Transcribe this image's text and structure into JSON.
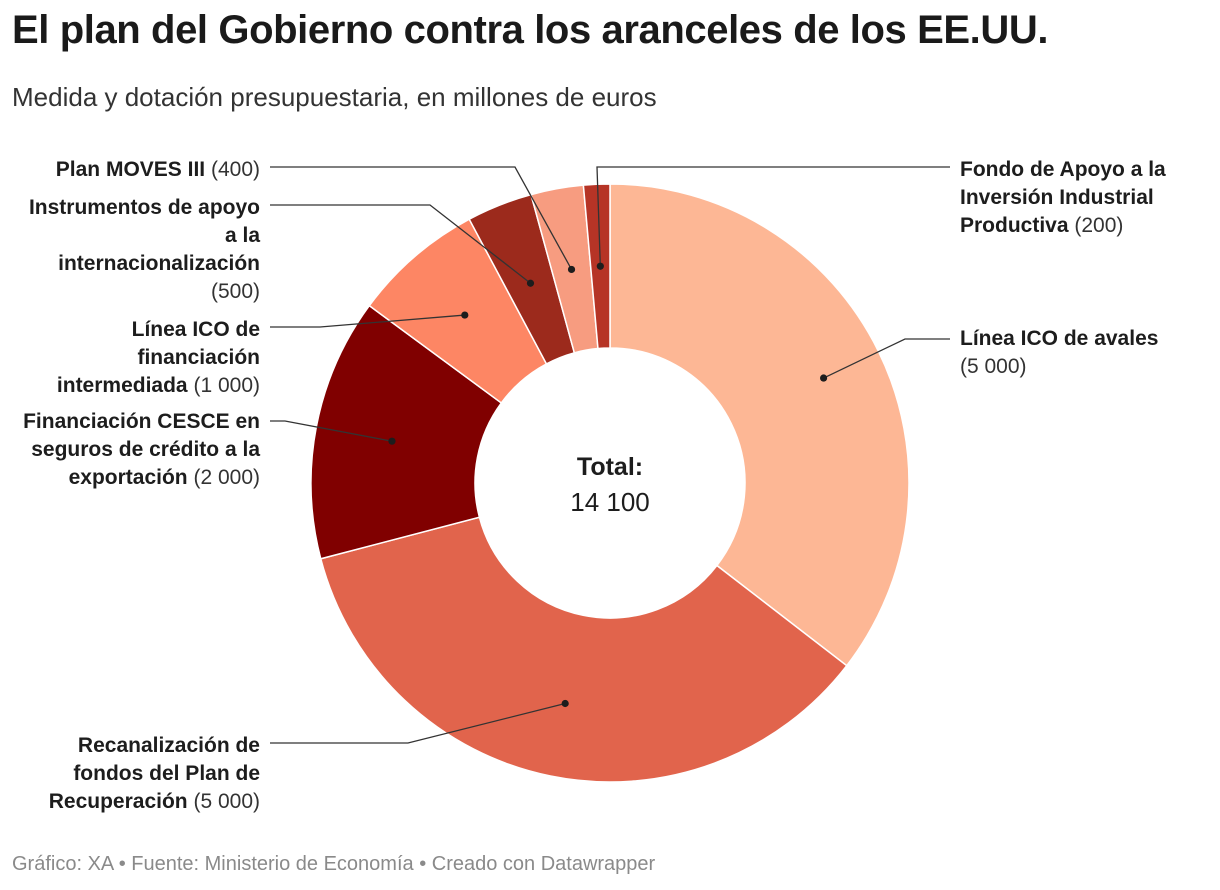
{
  "header": {
    "title": "El plan del Gobierno contra los aranceles de los EE.UU.",
    "subtitle": "Medida y dotación presupuestaria, en millones de euros"
  },
  "footer": {
    "text": "Gráfico: XA • Fuente: Ministerio de Economía • Creado con Datawrapper"
  },
  "chart_data": {
    "type": "pie",
    "variant": "donut",
    "title": "El plan del Gobierno contra los aranceles de los EE.UU.",
    "subtitle": "Medida y dotación presupuestaria, en millones de euros",
    "center": {
      "label": "Total:",
      "value": "14 100"
    },
    "total": 14100,
    "slices": [
      {
        "name": "Línea ICO de avales",
        "value": 5000,
        "value_label": "(5 000)",
        "color": "#fdb795"
      },
      {
        "name": "Recanalización de fondos del Plan de Recuperación",
        "value": 5000,
        "value_label": "(5 000)",
        "color": "#e1644c"
      },
      {
        "name": "Financiación CESCE en seguros de crédito a la exportación",
        "value": 2000,
        "value_label": "(2 000)",
        "color": "#800000"
      },
      {
        "name": "Línea ICO de financiación intermediada",
        "value": 1000,
        "value_label": "(1 000)",
        "color": "#fd8664"
      },
      {
        "name": "Instrumentos de apoyo a la internacionalización",
        "value": 500,
        "value_label": "(500)",
        "color": "#9c2a1c"
      },
      {
        "name": "Plan MOVES III",
        "value": 400,
        "value_label": "(400)",
        "color": "#f79c80"
      },
      {
        "name": "Fondo de Apoyo a la Inversión Industrial Productiva",
        "value": 200,
        "value_label": "(200)",
        "color": "#b63426"
      }
    ]
  }
}
